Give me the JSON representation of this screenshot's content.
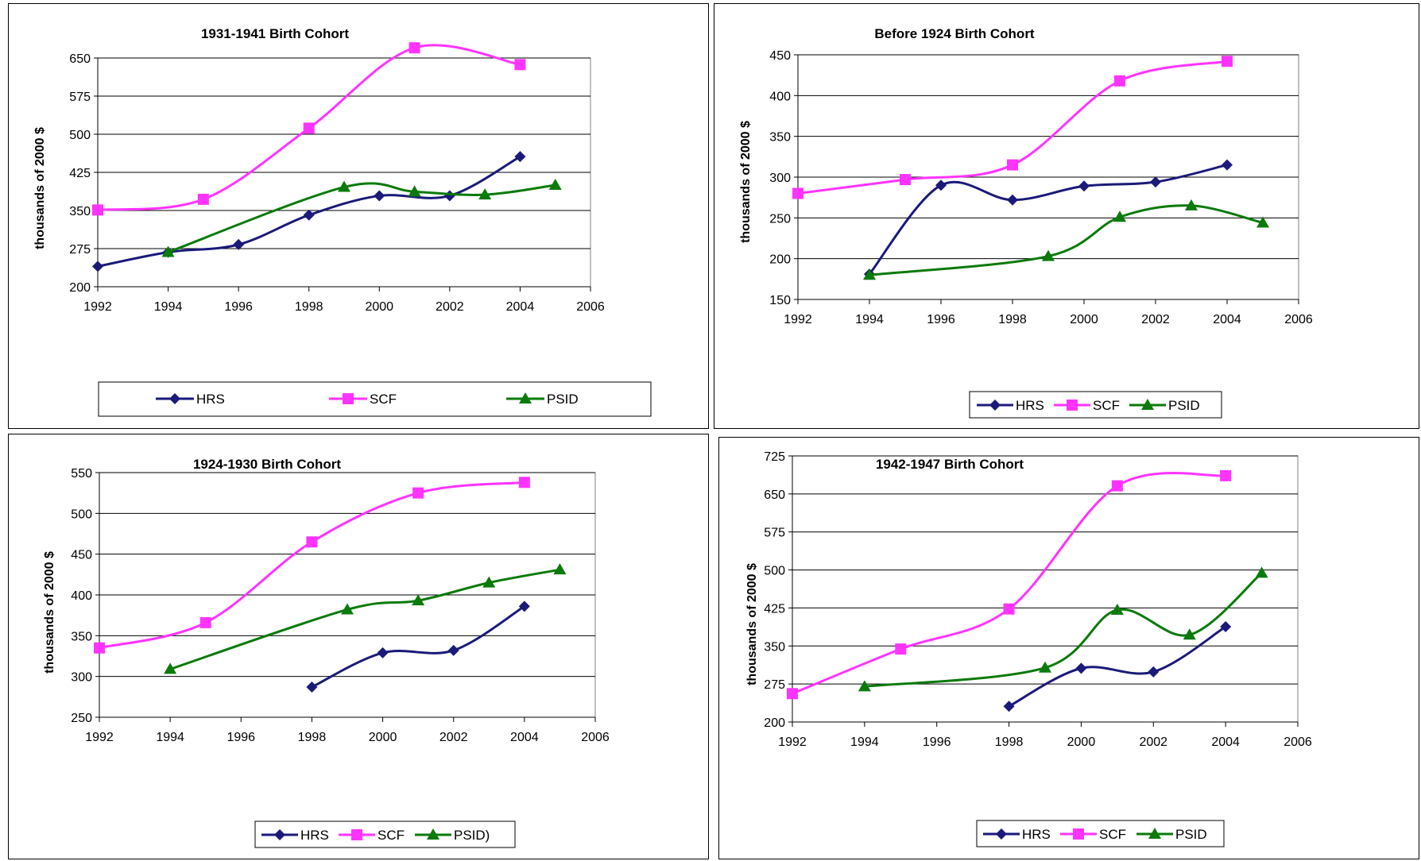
{
  "colors": {
    "HRS": "#1a1a7a",
    "SCF": "#ff33ff",
    "PSID": "#0a7a0a",
    "grid": "#000000"
  },
  "chart_data": [
    {
      "type": "line",
      "title": "1931-1941 Birth Cohort",
      "ylabel": "thousands of 2000 $",
      "xlim": [
        1992,
        2006
      ],
      "ylim": [
        200,
        650
      ],
      "xticks": [
        1992,
        1994,
        1996,
        1998,
        2000,
        2002,
        2004,
        2006
      ],
      "yticks": [
        200,
        275,
        350,
        425,
        500,
        575,
        650
      ],
      "grid": true,
      "legend": "bottom",
      "series": [
        {
          "name": "HRS",
          "marker": "diamond",
          "x": [
            1992,
            1994,
            1996,
            1998,
            2000,
            2002,
            2004
          ],
          "y": [
            240,
            268,
            283,
            341,
            379,
            379,
            456
          ]
        },
        {
          "name": "SCF",
          "marker": "square",
          "x": [
            1992,
            1995,
            1998,
            2001,
            2004
          ],
          "y": [
            351,
            372,
            512,
            670,
            637
          ]
        },
        {
          "name": "PSID",
          "marker": "triangle",
          "x": [
            1994,
            1999,
            2001,
            2003,
            2005
          ],
          "y": [
            268,
            396,
            387,
            381,
            400
          ]
        }
      ]
    },
    {
      "type": "line",
      "title": "Before 1924 Birth Cohort",
      "ylabel": "thousands of 2000 $",
      "xlim": [
        1992,
        2006
      ],
      "ylim": [
        150,
        450
      ],
      "xticks": [
        1992,
        1994,
        1996,
        1998,
        2000,
        2002,
        2004,
        2006
      ],
      "yticks": [
        150,
        200,
        250,
        300,
        350,
        400,
        450
      ],
      "grid": true,
      "legend": "bottom",
      "series": [
        {
          "name": "HRS",
          "marker": "diamond",
          "x": [
            1994,
            1996,
            1998,
            2000,
            2002,
            2004
          ],
          "y": [
            181,
            290,
            272,
            289,
            294,
            315
          ]
        },
        {
          "name": "SCF",
          "marker": "square",
          "x": [
            1992,
            1995,
            1998,
            2001,
            2004
          ],
          "y": [
            280,
            297,
            315,
            418,
            442
          ]
        },
        {
          "name": "PSID",
          "marker": "triangle",
          "x": [
            1994,
            1999,
            2001,
            2003,
            2005
          ],
          "y": [
            180,
            203,
            251,
            265,
            244
          ]
        }
      ]
    },
    {
      "type": "line",
      "title": "1924-1930 Birth Cohort",
      "ylabel": "thousands of 2000 $",
      "xlim": [
        1992,
        2006
      ],
      "ylim": [
        250,
        550
      ],
      "xticks": [
        1992,
        1994,
        1996,
        1998,
        2000,
        2002,
        2004,
        2006
      ],
      "yticks": [
        250,
        300,
        350,
        400,
        450,
        500,
        550
      ],
      "grid": true,
      "legend": "bottom",
      "series": [
        {
          "name": "HRS",
          "marker": "diamond",
          "x": [
            1998,
            2000,
            2002,
            2004
          ],
          "y": [
            287,
            329,
            332,
            386
          ]
        },
        {
          "name": "SCF",
          "marker": "square",
          "x": [
            1992,
            1995,
            1998,
            2001,
            2004
          ],
          "y": [
            335,
            366,
            465,
            525,
            538
          ]
        },
        {
          "name": "PSID)",
          "marker": "triangle",
          "x": [
            1994,
            1999,
            2001,
            2003,
            2005
          ],
          "y": [
            309,
            382,
            393,
            415,
            431
          ]
        }
      ]
    },
    {
      "type": "line",
      "title": "1942-1947 Birth Cohort",
      "ylabel": "thousands of 2000 $",
      "xlim": [
        1992,
        2006
      ],
      "ylim": [
        200,
        725
      ],
      "xticks": [
        1992,
        1994,
        1996,
        1998,
        2000,
        2002,
        2004,
        2006
      ],
      "yticks": [
        200,
        275,
        350,
        425,
        500,
        575,
        650,
        725
      ],
      "grid": true,
      "legend": "bottom",
      "series": [
        {
          "name": "HRS",
          "marker": "diamond",
          "x": [
            1998,
            2000,
            2002,
            2004
          ],
          "y": [
            231,
            306,
            299,
            388
          ]
        },
        {
          "name": "SCF",
          "marker": "square",
          "x": [
            1992,
            1995,
            1998,
            2001,
            2004
          ],
          "y": [
            256,
            344,
            423,
            666,
            686
          ]
        },
        {
          "name": "PSID",
          "marker": "triangle",
          "x": [
            1994,
            1999,
            2001,
            2003,
            2005
          ],
          "y": [
            270,
            307,
            421,
            372,
            494
          ]
        }
      ]
    }
  ]
}
